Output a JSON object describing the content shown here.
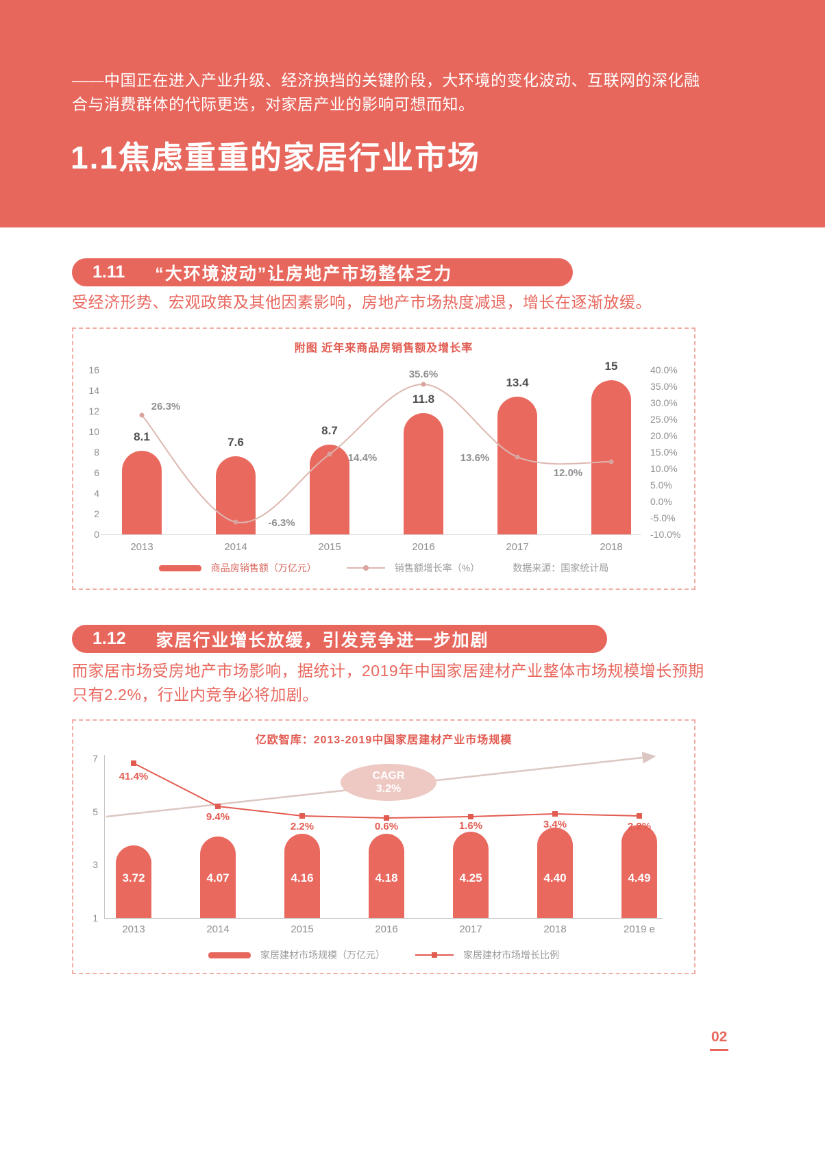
{
  "page_number": "02",
  "banner": {
    "intro": "——中国正在进入产业升级、经济换挡的关键阶段，大环境的变化波动、互联网的深化融合与消费群体的代际更迭，对家居产业的影响可想而知。",
    "title": "1.1焦虑重重的家居行业市场"
  },
  "sections": [
    {
      "number": "1.11",
      "title": "“大环境波动”让房地产市场整体乏力",
      "body": "受经济形势、宏观政策及其他因素影响，房地产市场热度减退，增长在逐渐放缓。"
    },
    {
      "number": "1.12",
      "title": "家居行业增长放缓，引发竞争进一步加剧",
      "body": "而家居市场受房地产市场影响，据统计，2019年中国家居建材产业整体市场规模增长预期只有2.2%，行业内竞争必将加剧。"
    }
  ],
  "colors": {
    "coral": "#e8675d",
    "accent_red": "#e25b51",
    "light_line": "#ddb7b1",
    "gray_text": "#8f8f8f"
  },
  "chart_data": [
    {
      "type": "bar+line",
      "title": "附图 近年来商品房销售额及增长率",
      "categories": [
        "2013",
        "2014",
        "2015",
        "2016",
        "2017",
        "2018"
      ],
      "bar_series": {
        "name": "商品房销售额（万亿元）",
        "values": [
          8.1,
          7.6,
          8.7,
          11.8,
          13.4,
          15
        ],
        "labels": [
          "8.1",
          "7.6",
          "8.7",
          "11.8",
          "13.4",
          "15"
        ]
      },
      "line_series": {
        "name": "销售额增长率（%）",
        "values": [
          26.3,
          -6.3,
          14.4,
          35.6,
          13.6,
          12.0
        ],
        "labels": [
          "26.3%",
          "-6.3%",
          "14.4%",
          "35.6%",
          "13.6%",
          "12.0%"
        ]
      },
      "left_axis": {
        "ticks": [
          "16",
          "14",
          "12",
          "10",
          "8",
          "6",
          "4",
          "2",
          "0"
        ],
        "min": 0,
        "max": 16
      },
      "right_axis": {
        "ticks": [
          "40.0%",
          "35.0%",
          "30.0%",
          "25.0%",
          "20.0%",
          "15.0%",
          "10.0%",
          "5.0%",
          "0.0%",
          "-5.0%",
          "-10.0%"
        ],
        "min": -10,
        "max": 40
      },
      "source": "数据来源：国家统计局",
      "legend_position": "bottom",
      "grid": false
    },
    {
      "type": "bar+line",
      "title": "亿欧智库：2013-2019中国家居建材产业市场规模",
      "categories": [
        "2013",
        "2014",
        "2015",
        "2016",
        "2017",
        "2018",
        "2019 e"
      ],
      "bar_series": {
        "name": "家居建材市场规模（万亿元）",
        "values": [
          3.72,
          4.07,
          4.16,
          4.18,
          4.25,
          4.4,
          4.49
        ],
        "labels": [
          "3.72",
          "4.07",
          "4.16",
          "4.18",
          "4.25",
          "4.40",
          "4.49"
        ]
      },
      "line_series": {
        "name": "家居建材市场增长比例",
        "values": [
          41.4,
          9.4,
          2.2,
          0.6,
          1.6,
          3.4,
          2.2
        ],
        "labels": [
          "41.4%",
          "9.4%",
          "2.2%",
          "0.6%",
          "1.6%",
          "3.4%",
          "2.2%"
        ]
      },
      "left_axis": {
        "ticks": [
          "7",
          "5",
          "3",
          "1"
        ],
        "min": 1,
        "max": 7
      },
      "annotation": {
        "label": "CAGR",
        "value": "3.2%"
      },
      "trend_arrow": true,
      "legend_position": "bottom",
      "grid": false
    }
  ]
}
